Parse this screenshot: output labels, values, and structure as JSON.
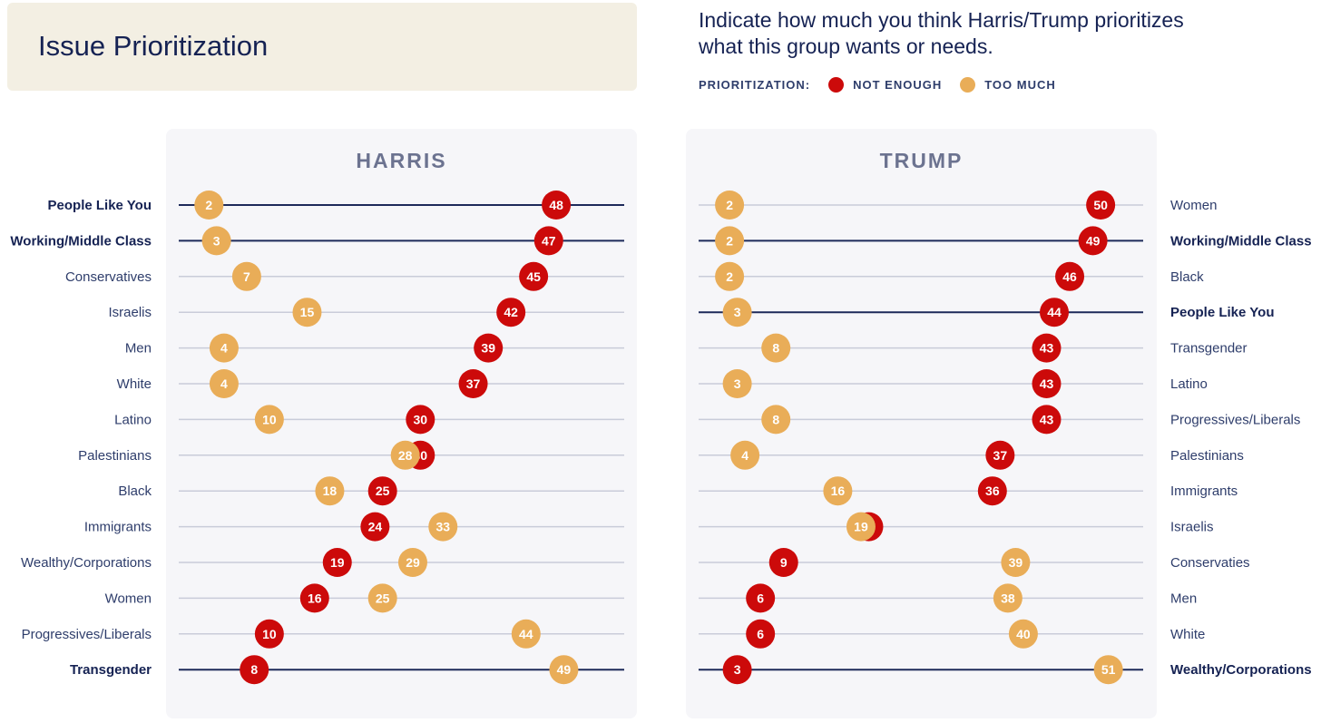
{
  "title": "Issue Prioritization",
  "question": "Indicate how much you think Harris/Trump prioritizes what this group wants or needs.",
  "legend": {
    "label": "PRIORITIZATION:",
    "not_enough": "NOT ENOUGH",
    "too_much": "TOO MUCH"
  },
  "colors": {
    "not_enough": "#cc0a0a",
    "too_much": "#e9ad58",
    "highlight_line": "#1d2a5a",
    "line": "#c9ccd9"
  },
  "chart_data": [
    {
      "type": "dot",
      "title": "HARRIS",
      "xlim": [
        -2,
        57
      ],
      "labels_side": "left",
      "rows": [
        {
          "label": "People Like You",
          "not_enough": 48,
          "too_much": 2,
          "highlight": true
        },
        {
          "label": "Working/Middle Class",
          "not_enough": 47,
          "too_much": 3,
          "highlight": true
        },
        {
          "label": "Conservatives",
          "not_enough": 45,
          "too_much": 7,
          "highlight": false
        },
        {
          "label": "Israelis",
          "not_enough": 42,
          "too_much": 15,
          "highlight": false
        },
        {
          "label": "Men",
          "not_enough": 39,
          "too_much": 4,
          "highlight": false
        },
        {
          "label": "White",
          "not_enough": 37,
          "too_much": 4,
          "highlight": false
        },
        {
          "label": "Latino",
          "not_enough": 30,
          "too_much": 10,
          "highlight": false
        },
        {
          "label": "Palestinians",
          "not_enough": 30,
          "too_much": 28,
          "highlight": false
        },
        {
          "label": "Black",
          "not_enough": 25,
          "too_much": 18,
          "highlight": false
        },
        {
          "label": "Immigrants",
          "not_enough": 24,
          "too_much": 33,
          "highlight": false
        },
        {
          "label": "Wealthy/Corporations",
          "not_enough": 19,
          "too_much": 29,
          "highlight": false
        },
        {
          "label": "Women",
          "not_enough": 16,
          "too_much": 25,
          "highlight": false
        },
        {
          "label": "Progressives/Liberals",
          "not_enough": 10,
          "too_much": 44,
          "highlight": false
        },
        {
          "label": "Transgender",
          "not_enough": 8,
          "too_much": 49,
          "highlight": true
        }
      ]
    },
    {
      "type": "dot",
      "title": "TRUMP",
      "xlim": [
        -2,
        55.5
      ],
      "labels_side": "right",
      "rows": [
        {
          "label": "Women",
          "not_enough": 50,
          "too_much": 2,
          "highlight": false
        },
        {
          "label": "Working/Middle Class",
          "not_enough": 49,
          "too_much": 2,
          "highlight": true
        },
        {
          "label": "Black",
          "not_enough": 46,
          "too_much": 2,
          "highlight": false
        },
        {
          "label": "People Like You",
          "not_enough": 44,
          "too_much": 3,
          "highlight": true
        },
        {
          "label": "Transgender",
          "not_enough": 43,
          "too_much": 8,
          "highlight": false
        },
        {
          "label": "Latino",
          "not_enough": 43,
          "too_much": 3,
          "highlight": false
        },
        {
          "label": "Progressives/Liberals",
          "not_enough": 43,
          "too_much": 8,
          "highlight": false
        },
        {
          "label": "Palestinians",
          "not_enough": 37,
          "too_much": 4,
          "highlight": false
        },
        {
          "label": "Immigrants",
          "not_enough": 36,
          "too_much": 16,
          "highlight": false
        },
        {
          "label": "Israelis",
          "not_enough": 20,
          "too_much": 19,
          "highlight": false,
          "not_enough_hidden": true
        },
        {
          "label": "Conservaties",
          "not_enough": 9,
          "too_much": 39,
          "highlight": false
        },
        {
          "label": "Men",
          "not_enough": 6,
          "too_much": 38,
          "highlight": false
        },
        {
          "label": "White",
          "not_enough": 6,
          "too_much": 40,
          "highlight": false
        },
        {
          "label": "Wealthy/Corporations",
          "not_enough": 3,
          "too_much": 51,
          "highlight": true
        }
      ]
    }
  ]
}
